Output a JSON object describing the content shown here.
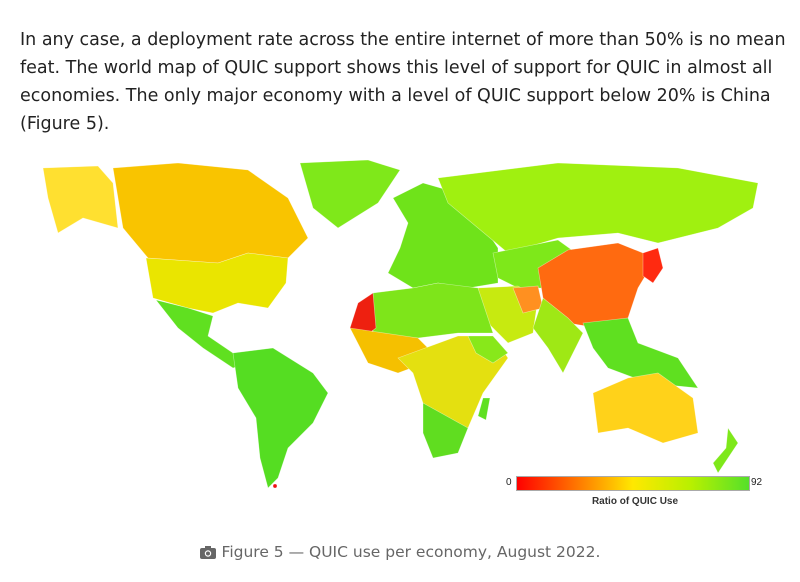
{
  "article": {
    "paragraph": "In any case, a deployment rate across the entire internet of more than 50% is no mean feat. The world map of QUIC support shows this level of support for QUIC in almost all economies. The only major economy with a level of QUIC support below 20% is China (Figure 5)."
  },
  "figure": {
    "legend": {
      "min": "0",
      "max": "92",
      "title": "Ratio of QUIC Use"
    },
    "caption": "Figure 5 — QUIC use per economy, August 2022.",
    "caption_icon": "camera-icon",
    "colors": {
      "low": "#ff0000",
      "mid": "#ffe800",
      "high": "#55e02a",
      "china": "#ff6a10"
    }
  }
}
